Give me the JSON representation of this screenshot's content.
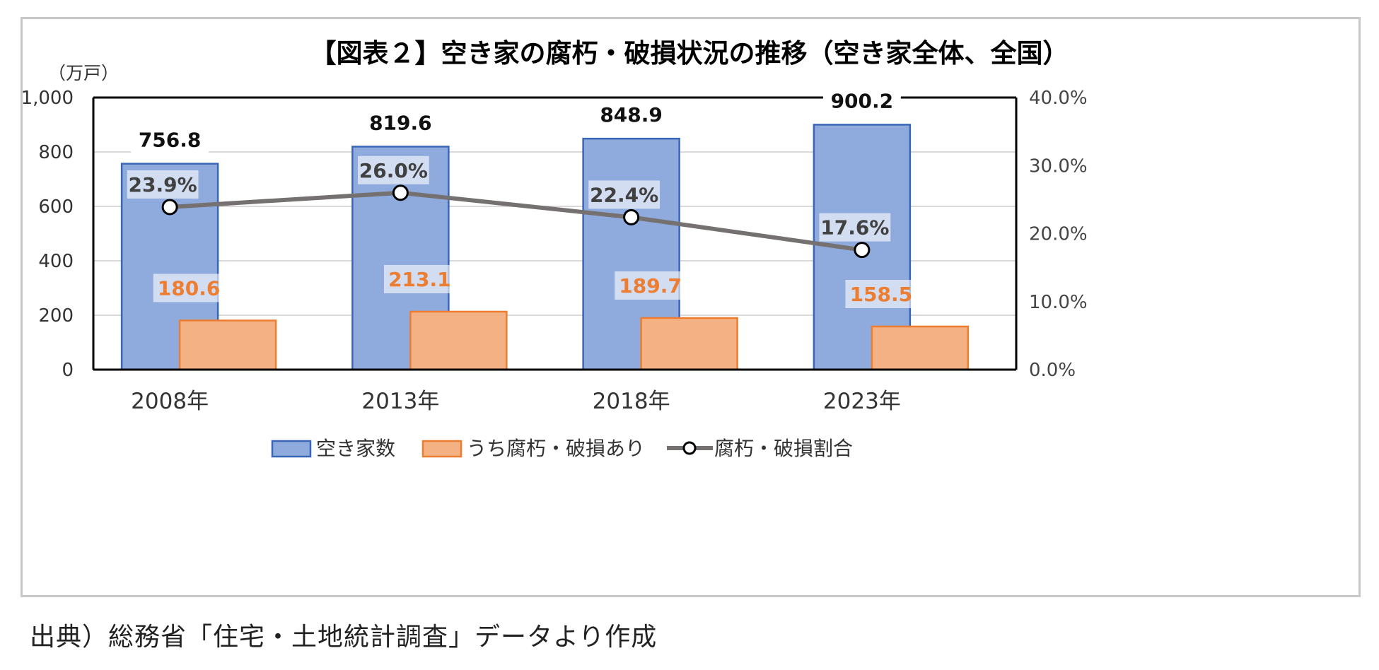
{
  "chart_data": {
    "type": "bar",
    "title": "【図表２】空き家の腐朽・破損状況の推移（空き家全体、全国）",
    "y_unit_label": "（万戸）",
    "categories": [
      "2008年",
      "2013年",
      "2018年",
      "2023年"
    ],
    "ylim": [
      0,
      1000
    ],
    "y_ticks": [
      0,
      200,
      400,
      600,
      800,
      1000
    ],
    "y_tick_labels": [
      "0",
      "200",
      "400",
      "600",
      "800",
      "1,000"
    ],
    "y2lim": [
      0,
      40
    ],
    "y2_ticks": [
      0,
      10,
      20,
      30,
      40
    ],
    "y2_tick_labels": [
      "0.0%",
      "10.0%",
      "20.0%",
      "30.0%",
      "40.0%"
    ],
    "grid": true,
    "legend_position": "bottom-center",
    "series": [
      {
        "name": "空き家数",
        "type": "bar",
        "axis": "left",
        "values": [
          756.8,
          819.6,
          848.9,
          900.2
        ],
        "labels": [
          "756.8",
          "819.6",
          "848.9",
          "900.2"
        ],
        "fill": "#8faadc",
        "stroke": "#3a66b8",
        "label_color": "#111111"
      },
      {
        "name": "うち腐朽・破損あり",
        "type": "bar",
        "axis": "left",
        "values": [
          180.6,
          213.1,
          189.7,
          158.5
        ],
        "labels": [
          "180.6",
          "213.1",
          "189.7",
          "158.5"
        ],
        "fill": "#f4b183",
        "stroke": "#ed7d31",
        "label_color": "#ed7d31"
      },
      {
        "name": "腐朽・破損割合",
        "type": "line",
        "axis": "right",
        "values": [
          23.9,
          26.0,
          22.4,
          17.6
        ],
        "labels": [
          "23.9%",
          "26.0%",
          "22.4%",
          "17.6%"
        ],
        "stroke": "#767171",
        "label_color": "#404040"
      }
    ]
  },
  "source_note": "出典）総務省「住宅・土地統計調査」データより作成"
}
